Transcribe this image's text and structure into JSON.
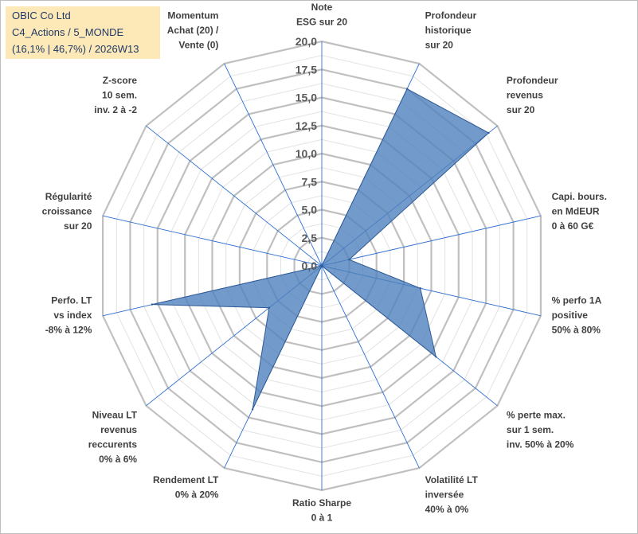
{
  "header": {
    "line1": "OBIC Co Ltd",
    "line2": "C4_Actions / 5_MONDE",
    "line3": "(16,1% | 46,7%) / 2026W13"
  },
  "chart_data": {
    "type": "radar",
    "title": "OBIC Co Ltd",
    "rmax": 20,
    "ticks": [
      "0,0",
      "2,5",
      "5,0",
      "7,5",
      "10,0",
      "12,5",
      "15,0",
      "17,5",
      "20,0"
    ],
    "tick_values": [
      0,
      2.5,
      5,
      7.5,
      10,
      12.5,
      15,
      17.5,
      20
    ],
    "axes": [
      {
        "label": [
          "Note",
          "ESG sur 20"
        ],
        "value": 0
      },
      {
        "label": [
          "Profondeur",
          "historique",
          "sur 20"
        ],
        "value": 17.5
      },
      {
        "label": [
          "Profondeur",
          "revenus",
          "sur 20"
        ],
        "value": 19.0
      },
      {
        "label": [
          "Capi. bours.",
          "en MdEUR",
          "0 à 60 G€"
        ],
        "value": 2.5
      },
      {
        "label": [
          "% perfo 1A",
          "positive",
          "50% à 80%"
        ],
        "value": 9.0
      },
      {
        "label": [
          "% perte max.",
          "sur 1 sem.",
          "inv. 50% à 20%"
        ],
        "value": 13.0
      },
      {
        "label": [
          "Volatilité LT",
          "inversée",
          "40% à 0%"
        ],
        "value": 0
      },
      {
        "label": [
          "Ratio Sharpe",
          "0 à 1"
        ],
        "value": 0
      },
      {
        "label": [
          "Rendement LT",
          "0% à 20%"
        ],
        "value": 14.2
      },
      {
        "label": [
          "Niveau LT",
          "revenus",
          "reccurents",
          "0% à 6%"
        ],
        "value": 6.0
      },
      {
        "label": [
          "Perfo. LT",
          "vs index",
          "-8% à 12%"
        ],
        "value": 15.5
      },
      {
        "label": [
          "Régularité",
          "croissance",
          "sur 20"
        ],
        "value": 0
      },
      {
        "label": [
          "Z-score",
          "10 sem.",
          "inv. 2 à -2"
        ],
        "value": 0
      },
      {
        "label": [
          "Momentum",
          "Achat (20) /",
          "Vente (0)"
        ],
        "value": 0
      }
    ],
    "colors": {
      "fill": "#4f81bd",
      "stroke": "#2e5a95",
      "grid_major": "#c0c0c0",
      "grid_minor": "#e2e2e2",
      "spoke": "#2f6fd0"
    }
  }
}
